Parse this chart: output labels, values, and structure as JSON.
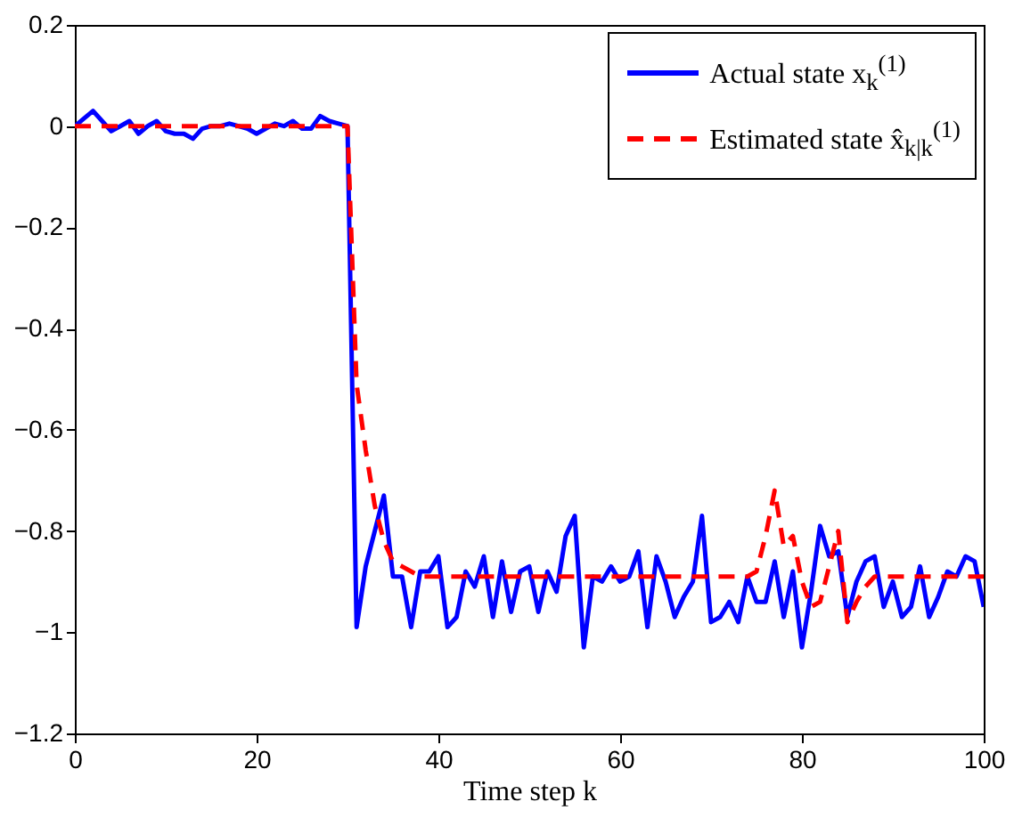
{
  "chart_data": {
    "type": "line",
    "xlabel": "Time step k",
    "x": [
      0,
      1,
      2,
      3,
      4,
      5,
      6,
      7,
      8,
      9,
      10,
      11,
      12,
      13,
      14,
      15,
      16,
      17,
      18,
      19,
      20,
      21,
      22,
      23,
      24,
      25,
      26,
      27,
      28,
      29,
      30,
      31,
      32,
      33,
      34,
      35,
      36,
      37,
      38,
      39,
      40,
      41,
      42,
      43,
      44,
      45,
      46,
      47,
      48,
      49,
      50,
      51,
      52,
      53,
      54,
      55,
      56,
      57,
      58,
      59,
      60,
      61,
      62,
      63,
      64,
      65,
      66,
      67,
      68,
      69,
      70,
      71,
      72,
      73,
      74,
      75,
      76,
      77,
      78,
      79,
      80,
      81,
      82,
      83,
      84,
      85,
      86,
      87,
      88,
      89,
      90,
      91,
      92,
      93,
      94,
      95,
      96,
      97,
      98,
      99,
      100
    ],
    "series": [
      {
        "name": "Actual state x$_{k}$$^{(1)}$",
        "color": "#0000ff",
        "line_style": "solid",
        "values": [
          0,
          0.015,
          0.03,
          0.01,
          -0.01,
          0,
          0.01,
          -0.015,
          0,
          0.01,
          -0.01,
          -0.015,
          -0.015,
          -0.025,
          -0.005,
          0,
          0,
          0.005,
          0,
          -0.005,
          -0.015,
          -0.005,
          0.005,
          0,
          0.01,
          -0.005,
          -0.005,
          0.02,
          0.01,
          0.005,
          0,
          -0.99,
          -0.87,
          -0.8,
          -0.73,
          -0.89,
          -0.89,
          -0.99,
          -0.88,
          -0.88,
          -0.85,
          -0.99,
          -0.97,
          -0.88,
          -0.91,
          -0.85,
          -0.97,
          -0.86,
          -0.96,
          -0.88,
          -0.87,
          -0.96,
          -0.88,
          -0.92,
          -0.81,
          -0.77,
          -1.03,
          -0.89,
          -0.9,
          -0.87,
          -0.9,
          -0.89,
          -0.84,
          -0.99,
          -0.85,
          -0.9,
          -0.97,
          -0.93,
          -0.9,
          -0.77,
          -0.98,
          -0.97,
          -0.94,
          -0.98,
          -0.89,
          -0.94,
          -0.94,
          -0.86,
          -0.97,
          -0.88,
          -1.03,
          -0.92,
          -0.79,
          -0.85,
          -0.84,
          -0.97,
          -0.9,
          -0.86,
          -0.85,
          -0.95,
          -0.9,
          -0.97,
          -0.95,
          -0.87,
          -0.97,
          -0.93,
          -0.88,
          -0.89,
          -0.85,
          -0.86,
          -0.95
        ]
      },
      {
        "name": "Estimated state x̂$_{k|k}$$^{(1)}$",
        "color": "#ff0000",
        "line_style": "dashed",
        "values": [
          0,
          0,
          0,
          0,
          0,
          0,
          0,
          0,
          0,
          0,
          0,
          0,
          0,
          0,
          0,
          0,
          0,
          0,
          0,
          0,
          0,
          0,
          0,
          0,
          0,
          0,
          0,
          0,
          0,
          0,
          0,
          -0.51,
          -0.64,
          -0.75,
          -0.82,
          -0.86,
          -0.87,
          -0.88,
          -0.89,
          -0.89,
          -0.89,
          -0.89,
          -0.89,
          -0.89,
          -0.89,
          -0.89,
          -0.89,
          -0.89,
          -0.89,
          -0.89,
          -0.89,
          -0.89,
          -0.89,
          -0.89,
          -0.89,
          -0.89,
          -0.89,
          -0.89,
          -0.89,
          -0.89,
          -0.89,
          -0.89,
          -0.89,
          -0.89,
          -0.89,
          -0.89,
          -0.89,
          -0.89,
          -0.89,
          -0.89,
          -0.89,
          -0.89,
          -0.89,
          -0.89,
          -0.89,
          -0.88,
          -0.81,
          -0.72,
          -0.83,
          -0.81,
          -0.9,
          -0.95,
          -0.94,
          -0.87,
          -0.8,
          -0.98,
          -0.94,
          -0.91,
          -0.89,
          -0.89,
          -0.89,
          -0.89,
          -0.89,
          -0.89,
          -0.89,
          -0.89,
          -0.89,
          -0.89,
          -0.89,
          -0.89,
          -0.89
        ]
      }
    ],
    "xlim": [
      0,
      100
    ],
    "xticks": [
      0,
      20,
      40,
      60,
      80,
      100
    ],
    "ylim": [
      -1.2,
      0.2
    ],
    "yticks": [
      -1.2,
      -1,
      -0.8,
      -0.6,
      -0.4,
      -0.2,
      0,
      0.2
    ],
    "legend": "top right"
  }
}
